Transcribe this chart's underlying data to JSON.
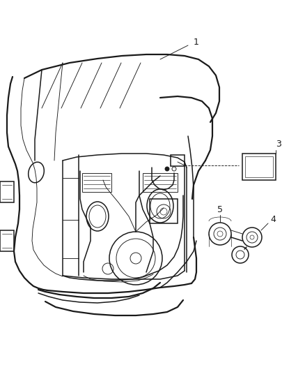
{
  "background_color": "#ffffff",
  "line_color": "#1a1a1a",
  "fig_width": 4.38,
  "fig_height": 5.33,
  "dpi": 100,
  "label1": "1",
  "label3": "3",
  "label4": "4",
  "label5": "5",
  "lw_outer": 1.6,
  "lw_mid": 1.1,
  "lw_thin": 0.65,
  "lw_hair": 0.45
}
